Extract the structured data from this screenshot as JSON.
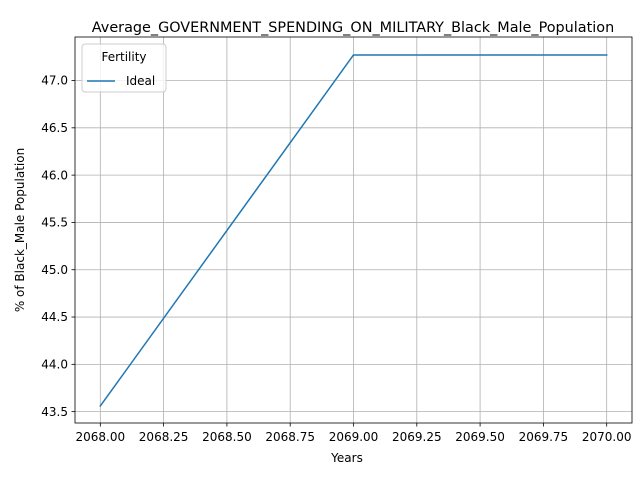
{
  "chart_data": {
    "type": "line",
    "title": "Average_GOVERNMENT_SPENDING_ON_MILITARY_Black_Male_Population",
    "xlabel": "Years",
    "ylabel": "% of Black_Male Population",
    "xlim": [
      2067.9,
      2070.1
    ],
    "ylim": [
      43.38,
      47.46
    ],
    "x_ticks": [
      2068.0,
      2068.25,
      2068.5,
      2068.75,
      2069.0,
      2069.25,
      2069.5,
      2069.75,
      2070.0
    ],
    "x_tick_labels": [
      "2068.00",
      "2068.25",
      "2068.50",
      "2068.75",
      "2069.00",
      "2069.25",
      "2069.50",
      "2069.75",
      "2070.00"
    ],
    "y_ticks": [
      43.5,
      44.0,
      44.5,
      45.0,
      45.5,
      46.0,
      46.5,
      47.0
    ],
    "y_tick_labels": [
      "43.5",
      "44.0",
      "44.5",
      "45.0",
      "45.5",
      "46.0",
      "46.5",
      "47.0"
    ],
    "grid": true,
    "legend": {
      "title": "Fertility",
      "placement": "top-left"
    },
    "series": [
      {
        "name": "Ideal",
        "color": "#1f77b4",
        "x": [
          2068,
          2069,
          2070
        ],
        "y": [
          43.56,
          47.27,
          47.27
        ]
      }
    ]
  }
}
